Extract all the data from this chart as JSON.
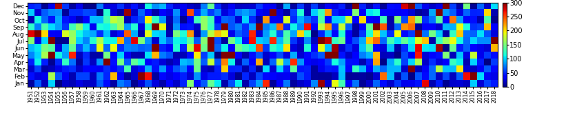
{
  "years": [
    1951,
    1952,
    1953,
    1954,
    1955,
    1956,
    1957,
    1958,
    1959,
    1960,
    1961,
    1962,
    1963,
    1964,
    1965,
    1966,
    1967,
    1968,
    1969,
    1970,
    1971,
    1972,
    1973,
    1974,
    1975,
    1976,
    1977,
    1978,
    1979,
    1980,
    1981,
    1982,
    1983,
    1984,
    1985,
    1986,
    1987,
    1988,
    1989,
    1990,
    1991,
    1992,
    1993,
    1994,
    1995,
    1996,
    1997,
    1998,
    1999,
    2000,
    2001,
    2002,
    2003,
    2004,
    2005,
    2006,
    2007,
    2008,
    2009,
    2010,
    2011,
    2012,
    2013,
    2014,
    2015,
    2016,
    2017,
    2018
  ],
  "months": [
    "Jan",
    "Feb",
    "Mar",
    "Apr",
    "May",
    "Jun",
    "Jul",
    "Aug",
    "Sep",
    "Oct",
    "Nov",
    "Dec"
  ],
  "vmin": 0,
  "vmax": 300,
  "colorbar_ticks": [
    0,
    50,
    100,
    150,
    200,
    250,
    300
  ],
  "figsize": [
    8.5,
    1.8
  ],
  "dpi": 100,
  "seed": 123,
  "monthly_base": [
    25,
    30,
    35,
    45,
    55,
    65,
    70,
    65,
    60,
    50,
    35,
    25
  ],
  "monthly_scale": [
    20,
    22,
    25,
    30,
    35,
    40,
    45,
    45,
    40,
    35,
    28,
    20
  ]
}
